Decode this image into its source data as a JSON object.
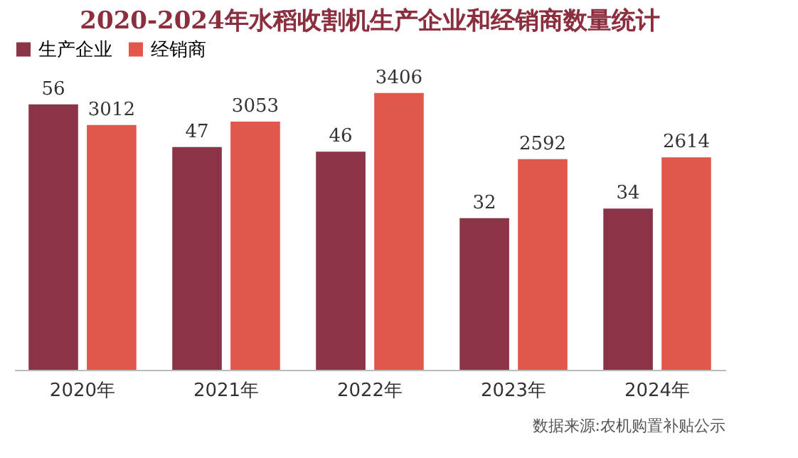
{
  "chart_data": {
    "type": "bar",
    "title": "2020-2024年水稻收割机生产企业和经销商数量统计",
    "categories": [
      "2020年",
      "2021年",
      "2022年",
      "2023年",
      "2024年"
    ],
    "series": [
      {
        "name": "生产企业",
        "color": "#8b3447",
        "values": [
          56,
          47,
          46,
          32,
          34
        ]
      },
      {
        "name": "经销商",
        "color": "#e0574c",
        "values": [
          3012,
          3053,
          3406,
          2592,
          2614
        ],
        "axis": "y2"
      }
    ],
    "data_labels": true,
    "tick_labels": "x",
    "legend": "top",
    "annotations": [
      "数据来源:农机购置补贴公示"
    ]
  }
}
